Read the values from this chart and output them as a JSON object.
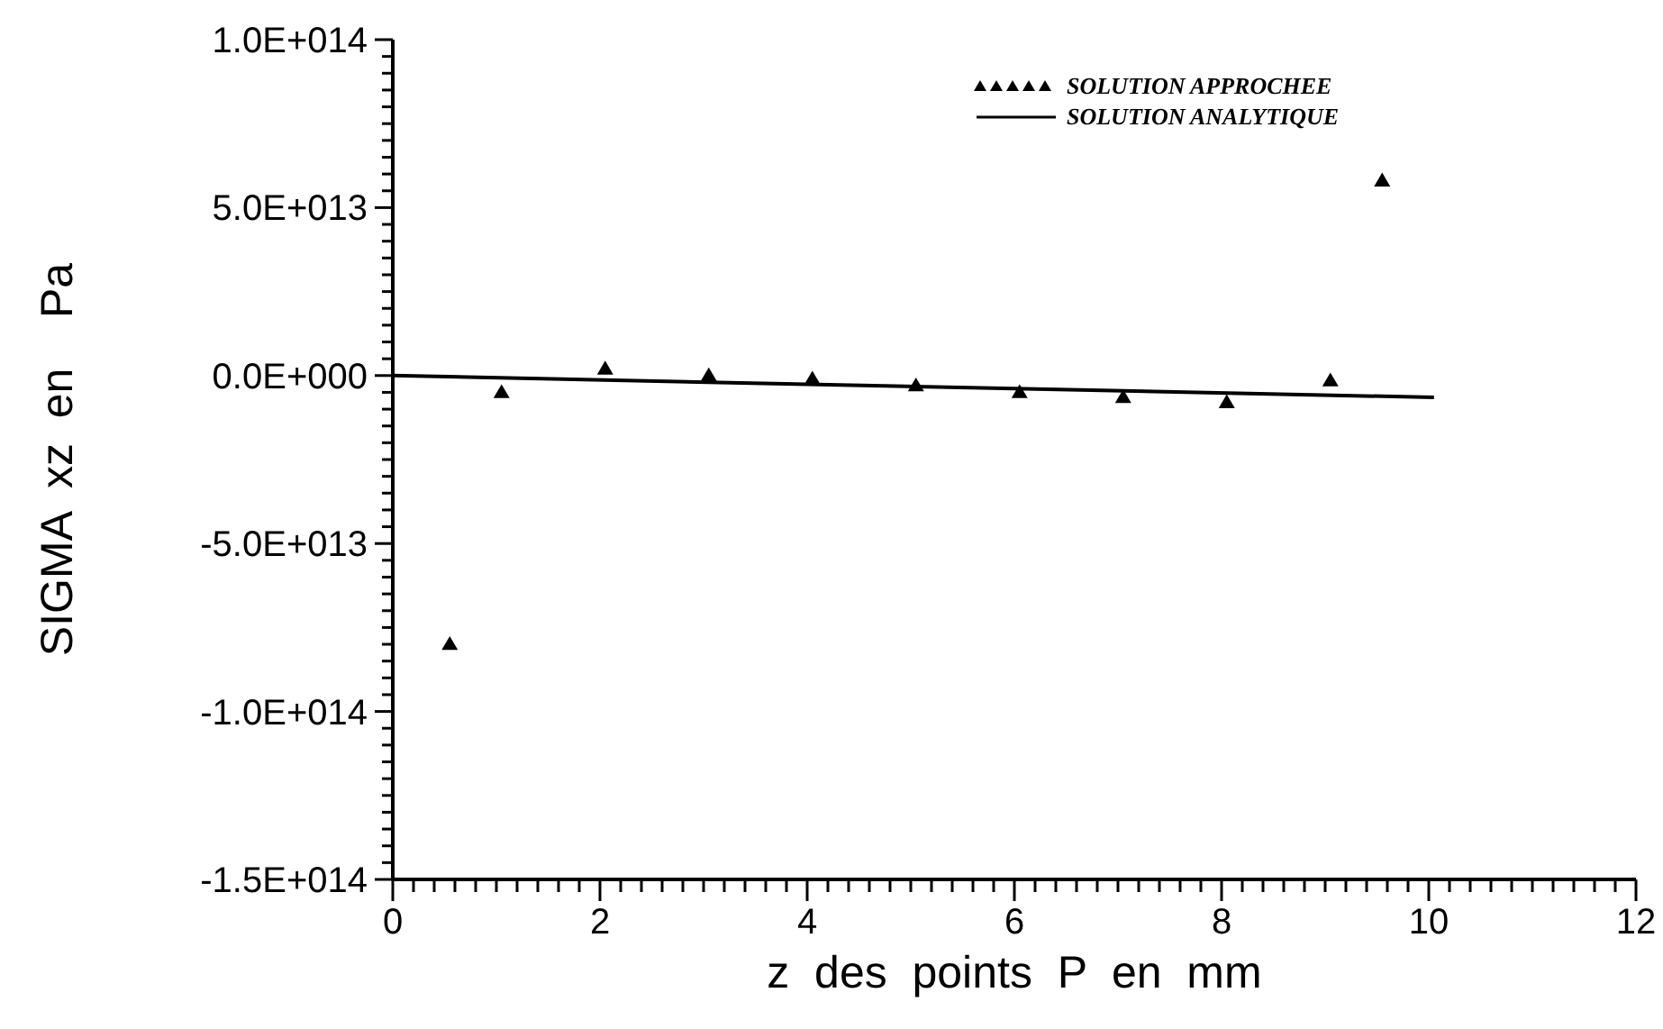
{
  "chart_data": {
    "type": "scatter",
    "xlabel": "z  des  points  P  en  mm",
    "ylabel": "SIGMA  xz  en    Pa",
    "xlim": [
      0,
      12
    ],
    "ylim": [
      -150000000000000.0,
      100000000000000.0
    ],
    "legend": "top right",
    "grid": false,
    "xticks": [
      0,
      {
        "value": 0.2,
        "label": null
      },
      {
        "value": 0.4,
        "label": null
      },
      {
        "value": 0.6,
        "label": null
      },
      {
        "value": 0.8,
        "label": null
      },
      {
        "value": 1,
        "label": null
      },
      {
        "value": 1.2,
        "label": null
      },
      {
        "value": 1.4,
        "label": null
      },
      {
        "value": 1.6,
        "label": null
      },
      {
        "value": 1.8,
        "label": null
      },
      2,
      {
        "value": 2.2,
        "label": null
      },
      {
        "value": 2.4,
        "label": null
      },
      {
        "value": 2.6,
        "label": null
      },
      {
        "value": 2.8,
        "label": null
      },
      {
        "value": 3,
        "label": null
      },
      {
        "value": 3.2,
        "label": null
      },
      {
        "value": 3.4,
        "label": null
      },
      {
        "value": 3.6,
        "label": null
      },
      {
        "value": 3.8,
        "label": null
      },
      4,
      {
        "value": 4.2,
        "label": null
      },
      {
        "value": 4.4,
        "label": null
      },
      {
        "value": 4.6,
        "label": null
      },
      {
        "value": 4.8,
        "label": null
      },
      {
        "value": 5,
        "label": null
      },
      {
        "value": 5.2,
        "label": null
      },
      {
        "value": 5.4,
        "label": null
      },
      {
        "value": 5.6,
        "label": null
      },
      {
        "value": 5.8,
        "label": null
      },
      6,
      {
        "value": 6.2,
        "label": null
      },
      {
        "value": 6.4,
        "label": null
      },
      {
        "value": 6.6,
        "label": null
      },
      {
        "value": 6.8,
        "label": null
      },
      {
        "value": 7,
        "label": null
      },
      {
        "value": 7.2,
        "label": null
      },
      {
        "value": 7.4,
        "label": null
      },
      {
        "value": 7.6,
        "label": null
      },
      {
        "value": 7.8,
        "label": null
      },
      8,
      {
        "value": 8.2,
        "label": null
      },
      {
        "value": 8.4,
        "label": null
      },
      {
        "value": 8.6,
        "label": null
      },
      {
        "value": 8.8,
        "label": null
      },
      {
        "value": 9,
        "label": null
      },
      {
        "value": 9.2,
        "label": null
      },
      {
        "value": 9.4,
        "label": null
      },
      {
        "value": 9.6,
        "label": null
      },
      {
        "value": 9.8,
        "label": null
      },
      10,
      {
        "value": 10.2,
        "label": null
      },
      {
        "value": 10.4,
        "label": null
      },
      {
        "value": 10.6,
        "label": null
      },
      {
        "value": 10.8,
        "label": null
      },
      {
        "value": 11,
        "label": null
      },
      {
        "value": 11.2,
        "label": null
      },
      {
        "value": 11.4,
        "label": null
      },
      {
        "value": 11.6,
        "label": null
      },
      {
        "value": 11.8,
        "label": null
      },
      12
    ],
    "yticks": [
      {
        "value": -150000000000000.0,
        "label": "-1.5E+014"
      },
      {
        "value": -145000000000000.0,
        "label": null
      },
      {
        "value": -140000000000000.0,
        "label": null
      },
      {
        "value": -135000000000000.0,
        "label": null
      },
      {
        "value": -130000000000000.0,
        "label": null
      },
      {
        "value": -125000000000000.0,
        "label": null
      },
      {
        "value": -120000000000000.0,
        "label": null
      },
      {
        "value": -115000000000000.0,
        "label": null
      },
      {
        "value": -110000000000000.0,
        "label": null
      },
      {
        "value": -105000000000000.0,
        "label": null
      },
      {
        "value": -100000000000000.0,
        "label": "-1.0E+014"
      },
      {
        "value": -95000000000000.0,
        "label": null
      },
      {
        "value": -90000000000000.0,
        "label": null
      },
      {
        "value": -85000000000000.0,
        "label": null
      },
      {
        "value": -80000000000000.0,
        "label": null
      },
      {
        "value": -75000000000000.0,
        "label": null
      },
      {
        "value": -70000000000000.0,
        "label": null
      },
      {
        "value": -65000000000000.0,
        "label": null
      },
      {
        "value": -60000000000000.0,
        "label": null
      },
      {
        "value": -55000000000000.0,
        "label": null
      },
      {
        "value": -50000000000000.0,
        "label": "-5.0E+013"
      },
      {
        "value": -45000000000000.0,
        "label": null
      },
      {
        "value": -40000000000000.0,
        "label": null
      },
      {
        "value": -35000000000000.0,
        "label": null
      },
      {
        "value": -30000000000000.0,
        "label": null
      },
      {
        "value": -25000000000000.0,
        "label": null
      },
      {
        "value": -20000000000000.0,
        "label": null
      },
      {
        "value": -15000000000000.0,
        "label": null
      },
      {
        "value": -10000000000000.0,
        "label": null
      },
      {
        "value": -5000000000000.0,
        "label": null
      },
      {
        "value": 0,
        "label": "0.0E+000"
      },
      {
        "value": 5000000000000.0,
        "label": null
      },
      {
        "value": 10000000000000.0,
        "label": null
      },
      {
        "value": 15000000000000.0,
        "label": null
      },
      {
        "value": 20000000000000.0,
        "label": null
      },
      {
        "value": 25000000000000.0,
        "label": null
      },
      {
        "value": 30000000000000.0,
        "label": null
      },
      {
        "value": 35000000000000.0,
        "label": null
      },
      {
        "value": 40000000000000.0,
        "label": null
      },
      {
        "value": 45000000000000.0,
        "label": null
      },
      {
        "value": 50000000000000.0,
        "label": "5.0E+013"
      },
      {
        "value": 55000000000000.0,
        "label": null
      },
      {
        "value": 60000000000000.0,
        "label": null
      },
      {
        "value": 65000000000000.0,
        "label": null
      },
      {
        "value": 70000000000000.0,
        "label": null
      },
      {
        "value": 75000000000000.0,
        "label": null
      },
      {
        "value": 80000000000000.0,
        "label": null
      },
      {
        "value": 85000000000000.0,
        "label": null
      },
      {
        "value": 90000000000000.0,
        "label": null
      },
      {
        "value": 95000000000000.0,
        "label": null
      },
      {
        "value": 100000000000000.0,
        "label": "1.0E+014"
      }
    ],
    "series": [
      {
        "name": "SOLUTION APPROCHEE",
        "marker": "triangle",
        "color": "#000000",
        "x": [
          0.55,
          1.05,
          2.05,
          3.05,
          4.05,
          5.05,
          6.05,
          7.05,
          8.05,
          9.05,
          9.55
        ],
        "values": [
          -80000000000000.0,
          -5000000000000.0,
          2000000000000.0,
          0,
          -1000000000000.0,
          -3000000000000.0,
          -5000000000000.0,
          -6500000000000.0,
          -8000000000000.0,
          -1500000000000.0,
          58000000000000.0
        ]
      },
      {
        "name": "SOLUTION ANALYTIQUE",
        "type": "line",
        "marker": "none",
        "line_style": "solid",
        "color": "#000000",
        "x": [
          0,
          10.05
        ],
        "values": [
          0,
          -6500000000000.0
        ]
      }
    ]
  }
}
